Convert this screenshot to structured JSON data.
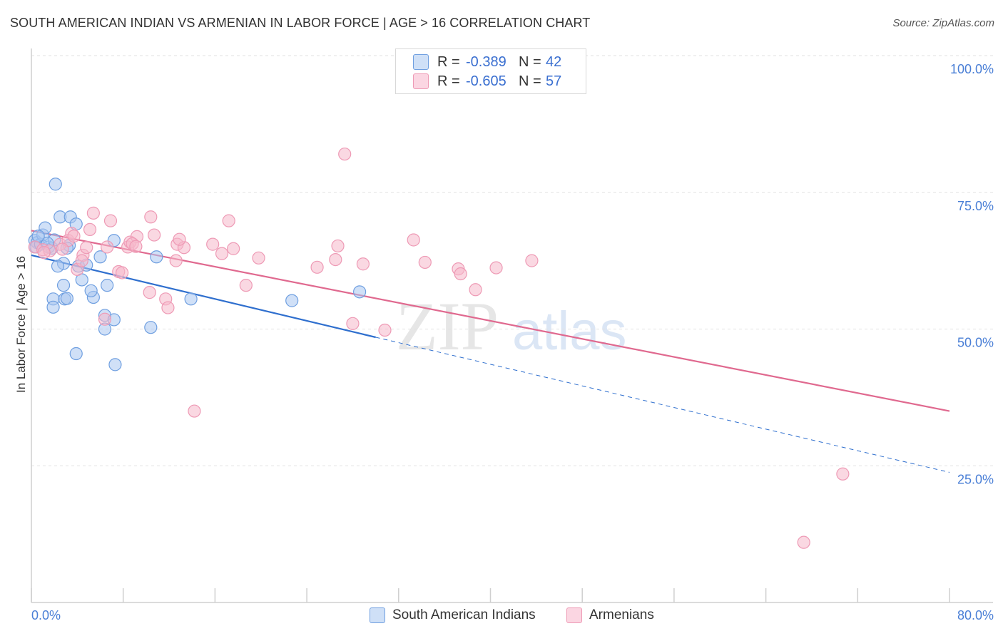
{
  "header": {
    "title": "SOUTH AMERICAN INDIAN VS ARMENIAN IN LABOR FORCE | AGE > 16 CORRELATION CHART",
    "source": "Source: ZipAtlas.com"
  },
  "legend_top": [
    {
      "swatch_color": "#a9c6f0",
      "r_label": "R =",
      "r_value": "-0.389",
      "n_label": "N =",
      "n_value": "42"
    },
    {
      "swatch_color": "#f5b8cb",
      "r_label": "R =",
      "r_value": "-0.605",
      "n_label": "N =",
      "n_value": "57"
    }
  ],
  "watermark": {
    "zip": "ZIP",
    "atlas": "atlas"
  },
  "chart_data": {
    "type": "scatter",
    "title": "SOUTH AMERICAN INDIAN VS ARMENIAN IN LABOR FORCE | AGE > 16 CORRELATION CHART",
    "xlabel": "",
    "ylabel": "In Labor Force | Age > 16",
    "xlim": [
      0,
      80
    ],
    "ylim": [
      0,
      100
    ],
    "x_tick_labels": [
      "0.0%",
      "80.0%"
    ],
    "y_ticks": [
      25,
      50,
      75,
      100
    ],
    "y_tick_labels": [
      "25.0%",
      "50.0%",
      "75.0%",
      "100.0%"
    ],
    "grid": "horizontal dashed",
    "legend_position": "bottom",
    "series": [
      {
        "name": "South American Indians",
        "color": "#6f9fe0",
        "fill": "#a9c6f0",
        "line_color": "#2f6fce",
        "trend": {
          "x0": 0,
          "y0": 63.5,
          "x1": 30,
          "y1": 48.5,
          "dashed_to_x": 80,
          "dashed_to_y": 23.8
        },
        "points": [
          [
            0.3,
            66.2
          ],
          [
            0.5,
            65.8
          ],
          [
            0.4,
            65.0
          ],
          [
            0.8,
            65.5
          ],
          [
            1.0,
            67.2
          ],
          [
            1.2,
            68.5
          ],
          [
            1.5,
            65.0
          ],
          [
            1.8,
            64.8
          ],
          [
            2.0,
            66.3
          ],
          [
            2.5,
            70.5
          ],
          [
            2.1,
            76.5
          ],
          [
            3.4,
            70.5
          ],
          [
            3.9,
            69.2
          ],
          [
            4.1,
            61.5
          ],
          [
            3.3,
            65.3
          ],
          [
            4.8,
            61.7
          ],
          [
            7.2,
            66.2
          ],
          [
            6.0,
            63.2
          ],
          [
            2.8,
            58.0
          ],
          [
            4.4,
            59.0
          ],
          [
            1.9,
            55.5
          ],
          [
            2.9,
            55.5
          ],
          [
            3.1,
            55.6
          ],
          [
            5.4,
            55.8
          ],
          [
            6.6,
            58.0
          ],
          [
            5.2,
            57.0
          ],
          [
            1.9,
            54.0
          ],
          [
            6.4,
            52.5
          ],
          [
            7.2,
            51.7
          ],
          [
            6.4,
            50.0
          ],
          [
            10.4,
            50.3
          ],
          [
            13.9,
            55.5
          ],
          [
            22.7,
            55.2
          ],
          [
            28.6,
            56.8
          ],
          [
            3.9,
            45.5
          ],
          [
            7.3,
            43.5
          ],
          [
            10.9,
            63.2
          ],
          [
            1.4,
            65.7
          ],
          [
            2.8,
            62.0
          ],
          [
            0.6,
            67.0
          ],
          [
            3.1,
            64.8
          ],
          [
            2.3,
            61.5
          ]
        ]
      },
      {
        "name": "Armenians",
        "color": "#ee9ab5",
        "fill": "#f5b8cb",
        "line_color": "#e0698f",
        "trend": {
          "x0": 0,
          "y0": 68.0,
          "x1": 80,
          "y1": 35.0
        },
        "points": [
          [
            0.3,
            65.0
          ],
          [
            1.0,
            64.5
          ],
          [
            1.6,
            64.3
          ],
          [
            2.5,
            65.5
          ],
          [
            3.2,
            66.2
          ],
          [
            3.5,
            67.5
          ],
          [
            4.5,
            63.5
          ],
          [
            4.8,
            64.9
          ],
          [
            5.1,
            68.2
          ],
          [
            5.4,
            71.2
          ],
          [
            6.9,
            69.8
          ],
          [
            6.6,
            65.0
          ],
          [
            7.6,
            60.5
          ],
          [
            8.4,
            65.0
          ],
          [
            8.6,
            65.9
          ],
          [
            9.2,
            66.9
          ],
          [
            10.4,
            70.5
          ],
          [
            10.7,
            67.2
          ],
          [
            11.7,
            55.5
          ],
          [
            12.7,
            65.5
          ],
          [
            13.3,
            64.9
          ],
          [
            12.6,
            62.5
          ],
          [
            15.8,
            65.5
          ],
          [
            16.6,
            63.8
          ],
          [
            17.2,
            69.8
          ],
          [
            17.6,
            64.7
          ],
          [
            18.7,
            58.0
          ],
          [
            19.8,
            63.0
          ],
          [
            24.9,
            61.3
          ],
          [
            26.5,
            62.7
          ],
          [
            26.7,
            65.2
          ],
          [
            28.0,
            51.0
          ],
          [
            28.9,
            61.9
          ],
          [
            27.3,
            82.0
          ],
          [
            30.8,
            49.8
          ],
          [
            33.3,
            66.3
          ],
          [
            34.3,
            62.2
          ],
          [
            37.2,
            61.0
          ],
          [
            37.4,
            60.1
          ],
          [
            38.7,
            57.2
          ],
          [
            40.5,
            61.2
          ],
          [
            43.6,
            62.5
          ],
          [
            11.9,
            53.9
          ],
          [
            14.2,
            35.0
          ],
          [
            10.3,
            56.7
          ],
          [
            6.4,
            51.8
          ],
          [
            8.8,
            65.6
          ],
          [
            4.0,
            60.9
          ],
          [
            4.4,
            62.5
          ],
          [
            2.7,
            64.6
          ],
          [
            1.1,
            64.0
          ],
          [
            7.9,
            60.3
          ],
          [
            9.1,
            65.1
          ],
          [
            12.9,
            66.4
          ],
          [
            70.7,
            23.5
          ],
          [
            67.3,
            11.0
          ],
          [
            3.7,
            67.0
          ]
        ]
      }
    ]
  }
}
